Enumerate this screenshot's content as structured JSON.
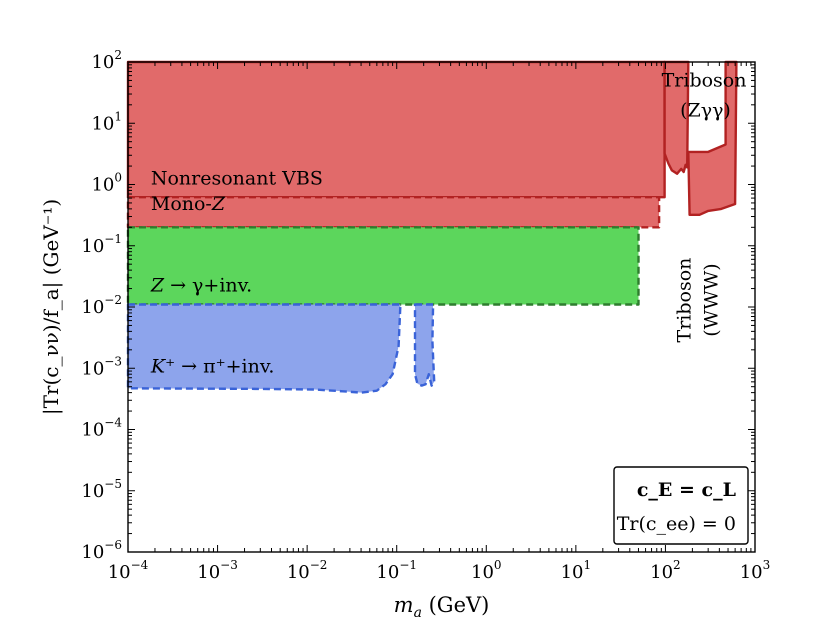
{
  "chart_data": {
    "type": "area",
    "x_scale": "log",
    "y_scale": "log",
    "xlim": [
      0.0001,
      1000
    ],
    "ylim": [
      1e-06,
      100
    ],
    "xlabel": {
      "main": "m",
      "sub": "a",
      "unit": " (GeV)"
    },
    "ylabel": "|Tr(c_νν)/f_a| (GeV⁻¹)",
    "x_ticks": [
      {
        "value": 0.0001,
        "base": "10",
        "exp": "−4"
      },
      {
        "value": 0.001,
        "base": "10",
        "exp": "−3"
      },
      {
        "value": 0.01,
        "base": "10",
        "exp": "−2"
      },
      {
        "value": 0.1,
        "base": "10",
        "exp": "−1"
      },
      {
        "value": 1,
        "base": "10",
        "exp": "0"
      },
      {
        "value": 10,
        "base": "10",
        "exp": "1"
      },
      {
        "value": 100,
        "base": "10",
        "exp": "2"
      },
      {
        "value": 1000,
        "base": "10",
        "exp": "3"
      }
    ],
    "y_ticks": [
      {
        "value": 1e-06,
        "base": "10",
        "exp": "−6"
      },
      {
        "value": 1e-05,
        "base": "10",
        "exp": "−5"
      },
      {
        "value": 0.0001,
        "base": "10",
        "exp": "−4"
      },
      {
        "value": 0.001,
        "base": "10",
        "exp": "−3"
      },
      {
        "value": 0.01,
        "base": "10",
        "exp": "−2"
      },
      {
        "value": 0.1,
        "base": "10",
        "exp": "−1"
      },
      {
        "value": 1,
        "base": "10",
        "exp": "0"
      },
      {
        "value": 10,
        "base": "10",
        "exp": "1"
      },
      {
        "value": 100,
        "base": "10",
        "exp": "2"
      }
    ],
    "colors": {
      "red_fill": "#e16a6a",
      "red_edge": "#b22222",
      "green_fill": "#5cd65c",
      "green_edge": "#2e7d2e",
      "blue_fill": "#8da4ec",
      "blue_edge": "#3a63d8"
    },
    "regions": [
      {
        "name": "Nonresonant VBS",
        "color": "red",
        "dashed": false,
        "points": [
          [
            0.0001,
            100
          ],
          [
            98,
            100
          ],
          [
            98,
            0.62
          ],
          [
            0.0001,
            0.62
          ]
        ]
      },
      {
        "name": "Mono-Z",
        "color": "red",
        "dashed": true,
        "points": [
          [
            0.0001,
            0.62
          ],
          [
            85,
            0.62
          ],
          [
            85,
            0.2
          ],
          [
            0.0001,
            0.2
          ]
        ]
      },
      {
        "name": "Triboson (Zγγ)",
        "color": "red",
        "dashed": false,
        "points": [
          [
            98,
            100
          ],
          [
            98,
            3.2
          ],
          [
            108,
            2.2
          ],
          [
            118,
            1.7
          ],
          [
            135,
            1.5
          ],
          [
            150,
            1.8
          ],
          [
            160,
            1.6
          ],
          [
            168,
            2.1
          ],
          [
            175,
            1.9
          ],
          [
            180,
            100
          ]
        ]
      },
      {
        "name": "Triboson (WWW)",
        "color": "red",
        "dashed": false,
        "points": [
          [
            180,
            3.4
          ],
          [
            186,
            0.32
          ],
          [
            240,
            0.32
          ],
          [
            300,
            0.37
          ],
          [
            420,
            0.4
          ],
          [
            600,
            0.48
          ],
          [
            620,
            100
          ],
          [
            470,
            100
          ],
          [
            470,
            4.5
          ],
          [
            300,
            3.4
          ]
        ]
      },
      {
        "name": "Z → γ+inv.",
        "color": "green",
        "dashed": true,
        "points": [
          [
            0.0001,
            0.2
          ],
          [
            50,
            0.2
          ],
          [
            50,
            0.011
          ],
          [
            0.0001,
            0.011
          ]
        ]
      },
      {
        "name": "K⁺ → π⁺+inv.",
        "color": "blue",
        "dashed": true,
        "points": [
          [
            0.0001,
            0.011
          ],
          [
            0.11,
            0.011
          ],
          [
            0.105,
            0.0023
          ],
          [
            0.09,
            0.0008
          ],
          [
            0.075,
            0.00055
          ],
          [
            0.06,
            0.00043
          ],
          [
            0.04,
            0.0004
          ],
          [
            0.025,
            0.00042
          ],
          [
            0.012,
            0.00045
          ],
          [
            0.003,
            0.00046
          ],
          [
            0.0001,
            0.00047
          ]
        ]
      },
      {
        "name": "K⁺ → π⁺+inv. (second window)",
        "color": "blue",
        "dashed": true,
        "points": [
          [
            0.16,
            0.011
          ],
          [
            0.255,
            0.011
          ],
          [
            0.25,
            0.0028
          ],
          [
            0.262,
            0.0006
          ],
          [
            0.245,
            0.00052
          ],
          [
            0.228,
            0.0008
          ],
          [
            0.21,
            0.00055
          ],
          [
            0.19,
            0.00052
          ],
          [
            0.17,
            0.00056
          ],
          [
            0.16,
            0.0008
          ]
        ]
      }
    ],
    "annotations": [
      {
        "text": "Nonresonant VBS",
        "x": 0.00018,
        "y": 1.0
      },
      {
        "text": "Mono-",
        "italic": "Z",
        "x": 0.00018,
        "y": 0.38
      },
      {
        "text_parts": [
          "Z",
          " → γ+inv."
        ],
        "x": 0.00018,
        "y": 0.018
      },
      {
        "text_parts": [
          "K",
          "⁺ → π⁺+inv."
        ],
        "x": 0.00018,
        "y": 0.00085
      },
      {
        "text": "Triboson",
        "x": 270,
        "y": 40
      },
      {
        "text": "(Zγγ)",
        "x": 280,
        "y": 13
      },
      {
        "text": "Triboson",
        "x": 190,
        "y": 0.013,
        "rotate": -90
      },
      {
        "text": "(WWW)",
        "x": 380,
        "y": 0.013,
        "rotate": -90
      }
    ],
    "legend_box": {
      "line1": "c_E = c_L",
      "line2": "Tr(c_ee) = 0"
    }
  }
}
